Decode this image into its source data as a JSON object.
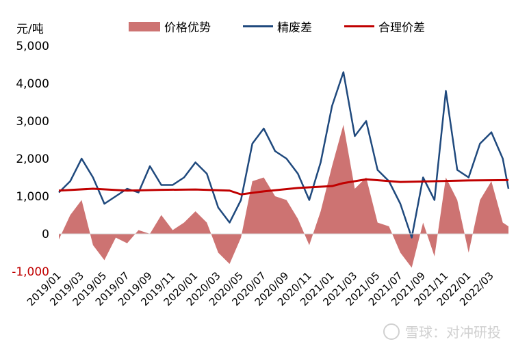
{
  "chart_data": {
    "type": "line",
    "unit_label": "元/吨",
    "y_ticks": [
      5000,
      4000,
      3000,
      2000,
      1000,
      0,
      -1000
    ],
    "y_tick_labels": [
      "5,000",
      "4,000",
      "3,000",
      "2,000",
      "1,000",
      "0",
      "-1,000"
    ],
    "ylim": [
      -1000,
      5000
    ],
    "x_ticks": [
      "2019/01",
      "2019/03",
      "2019/05",
      "2019/07",
      "2019/09",
      "2019/11",
      "2020/01",
      "2020/03",
      "2020/05",
      "2020/07",
      "2020/09",
      "2020/11",
      "2021/01",
      "2021/03",
      "2021/05",
      "2021/07",
      "2021/09",
      "2021/11",
      "2022/01",
      "2022/03"
    ],
    "xlim": [
      0,
      39.5
    ],
    "series": [
      {
        "name": "价格优势",
        "kind": "area",
        "color": "#cd7372",
        "x": [
          0,
          1,
          2,
          3,
          4,
          5,
          6,
          7,
          8,
          9,
          10,
          11,
          12,
          13,
          14,
          15,
          16,
          17,
          18,
          19,
          20,
          21,
          22,
          23,
          24,
          25,
          26,
          27,
          28,
          29,
          30,
          31,
          32,
          33,
          34,
          35,
          36,
          37,
          38,
          39,
          39.5
        ],
        "values": [
          -150,
          500,
          900,
          -300,
          -700,
          -100,
          -250,
          100,
          0,
          500,
          100,
          300,
          600,
          300,
          -500,
          -800,
          -100,
          1400,
          1500,
          1000,
          900,
          400,
          -300,
          600,
          1800,
          2900,
          1200,
          1500,
          300,
          200,
          -500,
          -900,
          300,
          -600,
          1500,
          900,
          -500,
          900,
          1400,
          300,
          200
        ]
      },
      {
        "name": "精废差",
        "kind": "line",
        "color": "#1f497d",
        "x": [
          0,
          1,
          2,
          3,
          4,
          5,
          6,
          7,
          8,
          9,
          10,
          11,
          12,
          13,
          14,
          15,
          16,
          17,
          18,
          19,
          20,
          21,
          22,
          23,
          24,
          25,
          26,
          27,
          28,
          29,
          30,
          31,
          32,
          33,
          34,
          35,
          36,
          37,
          38,
          39,
          39.5
        ],
        "values": [
          1100,
          1400,
          2000,
          1500,
          800,
          1000,
          1200,
          1100,
          1800,
          1300,
          1300,
          1500,
          1900,
          1600,
          700,
          300,
          900,
          2400,
          2800,
          2200,
          2000,
          1600,
          900,
          1900,
          3400,
          4300,
          2600,
          3000,
          1700,
          1400,
          800,
          -100,
          1500,
          900,
          3800,
          1700,
          1500,
          2400,
          2700,
          2000,
          1200
        ]
      },
      {
        "name": "合理价差",
        "kind": "line",
        "color": "#c00000",
        "x": [
          0,
          3,
          6,
          9,
          12,
          15,
          16,
          18,
          21,
          24,
          25,
          27,
          30,
          33,
          36,
          39.5
        ],
        "values": [
          1150,
          1200,
          1150,
          1170,
          1180,
          1150,
          1050,
          1130,
          1220,
          1270,
          1350,
          1450,
          1380,
          1400,
          1420,
          1430
        ]
      }
    ]
  },
  "watermark": "雪球：对冲研投"
}
